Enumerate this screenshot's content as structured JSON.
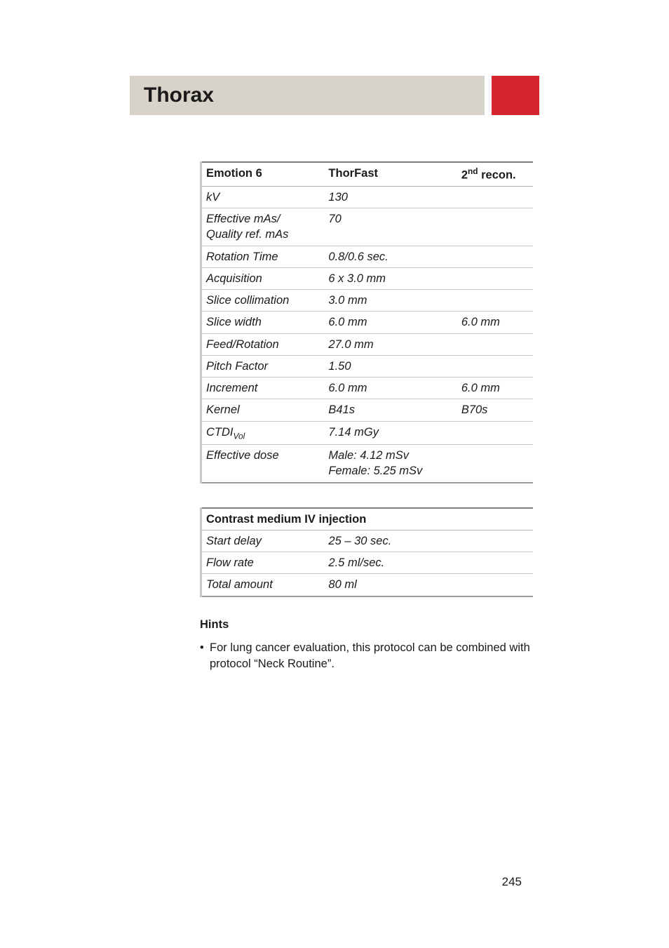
{
  "header": {
    "title": "Thorax"
  },
  "table1": {
    "headers": [
      "Emotion 6",
      "ThorFast",
      "2nd recon."
    ],
    "sup_index": 2,
    "sup_text": "nd",
    "header_prefix": "2",
    "header_suffix": " recon.",
    "rows": [
      {
        "param": "kV",
        "v1": "130",
        "v2": ""
      },
      {
        "param": "Effective mAs/\nQuality ref. mAs",
        "v1": "70",
        "v2": ""
      },
      {
        "param": "Rotation Time",
        "v1": "0.8/0.6 sec.",
        "v2": ""
      },
      {
        "param": "Acquisition",
        "v1": "6 x 3.0 mm",
        "v2": ""
      },
      {
        "param": "Slice collimation",
        "v1": "3.0 mm",
        "v2": ""
      },
      {
        "param": "Slice width",
        "v1": "6.0 mm",
        "v2": "6.0 mm"
      },
      {
        "param": "Feed/Rotation",
        "v1": "27.0 mm",
        "v2": ""
      },
      {
        "param": "Pitch Factor",
        "v1": "1.50",
        "v2": ""
      },
      {
        "param": "Increment",
        "v1": "6.0 mm",
        "v2": "6.0 mm"
      },
      {
        "param": "Kernel",
        "v1": "B41s",
        "v2": "B70s"
      },
      {
        "param_html": "CTDI<sub>Vol</sub>",
        "param": "CTDI Vol",
        "v1": "7.14 mGy",
        "v2": ""
      },
      {
        "param": "Effective dose",
        "v1": "Male: 4.12 mSv\nFemale: 5.25 mSv",
        "v2": ""
      }
    ]
  },
  "table2": {
    "header": "Contrast medium IV injection",
    "rows": [
      {
        "param": "Start delay",
        "val": "25 – 30 sec."
      },
      {
        "param": "Flow rate",
        "val": "2.5 ml/sec."
      },
      {
        "param": "Total amount",
        "val": "80 ml"
      }
    ]
  },
  "hints": {
    "heading": "Hints",
    "items": [
      "For lung cancer evaluation, this protocol can be combined with protocol “Neck Routine”."
    ]
  },
  "page_number": "245"
}
